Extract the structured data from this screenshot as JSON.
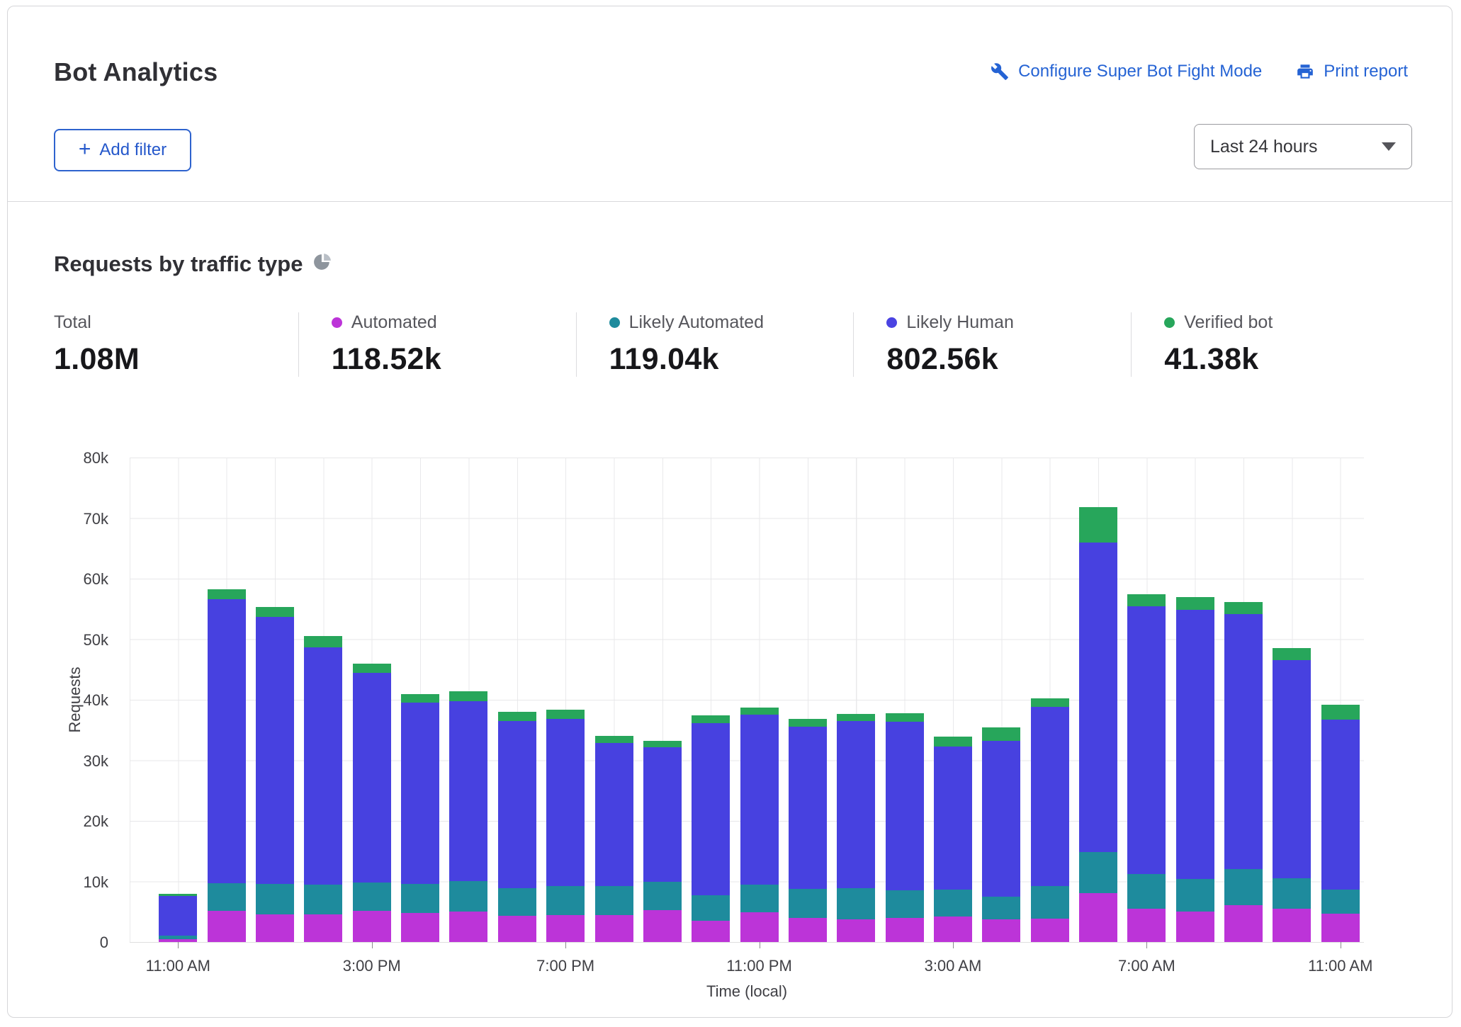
{
  "header": {
    "title": "Bot Analytics",
    "configure_link": "Configure Super Bot Fight Mode",
    "print_link": "Print report",
    "add_filter_label": "Add filter",
    "time_range_value": "Last 24 hours"
  },
  "section": {
    "heading": "Requests by traffic type"
  },
  "stats": [
    {
      "label": "Total",
      "value": "1.08M",
      "color": null
    },
    {
      "label": "Automated",
      "value": "118.52k",
      "color": "#bc34d8"
    },
    {
      "label": "Likely Automated",
      "value": "119.04k",
      "color": "#1e8b9d"
    },
    {
      "label": "Likely Human",
      "value": "802.56k",
      "color": "#4a43e2"
    },
    {
      "label": "Verified bot",
      "value": "41.38k",
      "color": "#27a65b"
    }
  ],
  "chart_data": {
    "type": "bar",
    "stacked": true,
    "title": "Requests by traffic type",
    "xlabel": "Time (local)",
    "ylabel": "Requests",
    "ylim": [
      0,
      80000
    ],
    "unit": "thousands of requests",
    "grid": true,
    "ytick_labels": [
      "0",
      "10k",
      "20k",
      "30k",
      "40k",
      "50k",
      "60k",
      "70k",
      "80k"
    ],
    "categories": [
      "11:00 AM",
      "12:00 PM",
      "1:00 PM",
      "2:00 PM",
      "3:00 PM",
      "4:00 PM",
      "5:00 PM",
      "6:00 PM",
      "7:00 PM",
      "8:00 PM",
      "9:00 PM",
      "10:00 PM",
      "11:00 PM",
      "12:00 AM",
      "1:00 AM",
      "2:00 AM",
      "3:00 AM",
      "4:00 AM",
      "5:00 AM",
      "6:00 AM",
      "7:00 AM",
      "8:00 AM",
      "9:00 AM",
      "10:00 AM",
      "11:00 AM"
    ],
    "xticks": [
      {
        "index": 0,
        "label": "11:00 AM"
      },
      {
        "index": 4,
        "label": "3:00 PM"
      },
      {
        "index": 8,
        "label": "7:00 PM"
      },
      {
        "index": 12,
        "label": "11:00 PM"
      },
      {
        "index": 16,
        "label": "3:00 AM"
      },
      {
        "index": 20,
        "label": "7:00 AM"
      },
      {
        "index": 24,
        "label": "11:00 AM"
      }
    ],
    "series": [
      {
        "name": "Automated",
        "color": "#bc34d8",
        "values": [
          0.5,
          5.2,
          4.6,
          4.6,
          5.1,
          4.8,
          5.0,
          4.3,
          4.5,
          4.5,
          5.3,
          3.5,
          4.9,
          4.0,
          3.8,
          4.0,
          4.2,
          3.8,
          3.9,
          8.1,
          5.5,
          5.0,
          6.1,
          5.5,
          4.7
        ]
      },
      {
        "name": "Likely Automated",
        "color": "#1e8b9d",
        "values": [
          0.55,
          4.5,
          5.0,
          4.9,
          4.7,
          4.8,
          5.0,
          4.6,
          4.7,
          4.8,
          4.6,
          4.2,
          4.6,
          4.8,
          5.1,
          4.5,
          4.45,
          3.7,
          5.3,
          6.8,
          5.7,
          5.4,
          5.9,
          5.0,
          3.95
        ]
      },
      {
        "name": "Likely Human",
        "color": "#4741e0",
        "values": [
          6.55,
          46.9,
          44.1,
          39.2,
          34.7,
          29.9,
          29.8,
          27.6,
          27.7,
          23.6,
          22.3,
          28.5,
          28.1,
          26.8,
          27.6,
          27.9,
          23.65,
          25.7,
          29.6,
          51.1,
          44.3,
          44.5,
          42.1,
          36.0,
          28.05
        ]
      },
      {
        "name": "Verified bot",
        "color": "#27a65b",
        "values": [
          0.4,
          1.6,
          1.6,
          1.8,
          1.5,
          1.5,
          1.6,
          1.5,
          1.5,
          1.1,
          1.0,
          1.2,
          1.1,
          1.2,
          1.2,
          1.4,
          1.6,
          2.2,
          1.4,
          5.8,
          1.9,
          2.1,
          2.0,
          2.0,
          2.5
        ]
      }
    ],
    "legend_position": "top (as stat blocks)"
  }
}
